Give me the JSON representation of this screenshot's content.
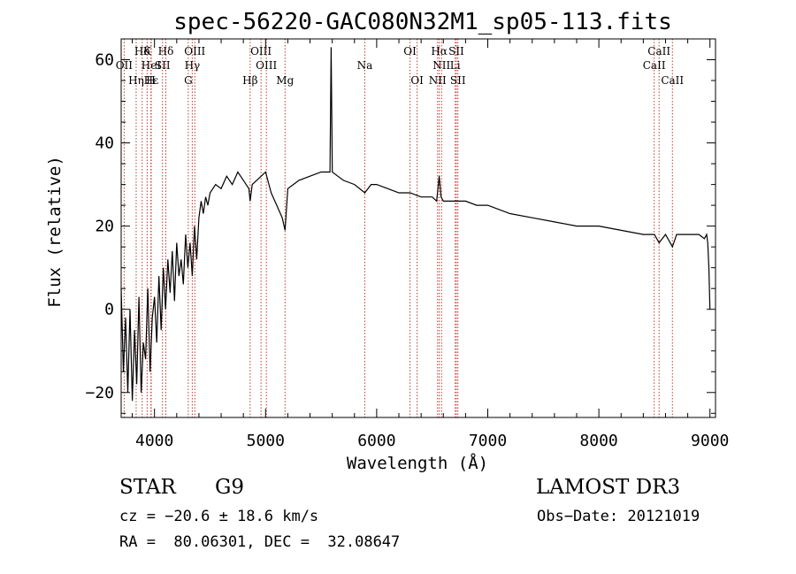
{
  "chart_data": {
    "type": "line",
    "title": "spec-56220-GAC080N32M1_sp05-113.fits",
    "xlabel": "Wavelength (Å)",
    "ylabel": "Flux (relative)",
    "xlim": [
      3700,
      9050
    ],
    "ylim": [
      -26,
      65
    ],
    "xticks": [
      4000,
      5000,
      6000,
      7000,
      8000,
      9000
    ],
    "yticks": [
      -20,
      0,
      20,
      40,
      60
    ],
    "series": [
      {
        "name": "flux",
        "x": [
          3700,
          3720,
          3740,
          3760,
          3780,
          3800,
          3820,
          3840,
          3860,
          3880,
          3900,
          3920,
          3940,
          3960,
          3980,
          4000,
          4020,
          4040,
          4060,
          4080,
          4100,
          4120,
          4140,
          4160,
          4180,
          4200,
          4220,
          4240,
          4260,
          4280,
          4300,
          4320,
          4340,
          4360,
          4380,
          4400,
          4420,
          4440,
          4460,
          4480,
          4500,
          4550,
          4600,
          4650,
          4700,
          4750,
          4800,
          4850,
          4861,
          4880,
          4920,
          4960,
          5000,
          5050,
          5100,
          5150,
          5175,
          5200,
          5250,
          5300,
          5400,
          5500,
          5580,
          5590,
          5600,
          5650,
          5700,
          5800,
          5893,
          5950,
          6000,
          6100,
          6200,
          6300,
          6400,
          6500,
          6540,
          6563,
          6580,
          6600,
          6700,
          6800,
          6900,
          7000,
          7200,
          7400,
          7600,
          7800,
          8000,
          8200,
          8400,
          8500,
          8542,
          8600,
          8662,
          8700,
          8800,
          8900,
          8950,
          8970,
          8980,
          8990,
          9000
        ],
        "y": [
          5,
          -15,
          -2,
          -20,
          0,
          -22,
          -5,
          -18,
          3,
          -20,
          -8,
          -12,
          5,
          -15,
          -2,
          3,
          -8,
          8,
          -5,
          10,
          0,
          12,
          4,
          14,
          2,
          16,
          8,
          12,
          6,
          18,
          10,
          16,
          8,
          20,
          12,
          22,
          26,
          23,
          27,
          25,
          28,
          30,
          29,
          32,
          30,
          33,
          31,
          29,
          26,
          30,
          31,
          32,
          33,
          28,
          25,
          22,
          19,
          29,
          30,
          31,
          32,
          33,
          33,
          63,
          33,
          32,
          31,
          30,
          28,
          30,
          30,
          29,
          28,
          28,
          27,
          27,
          26,
          32,
          27,
          26,
          26,
          26,
          25,
          25,
          23,
          22,
          21,
          20,
          20,
          19,
          18,
          18,
          16,
          18,
          15,
          18,
          18,
          18,
          17,
          18,
          16,
          10,
          0
        ]
      }
    ],
    "lines": [
      {
        "label": "Hδ",
        "x": 3889,
        "row": 1
      },
      {
        "label": "OII",
        "x": 3727,
        "row": 2
      },
      {
        "label": "K",
        "x": 3934,
        "row": 1
      },
      {
        "label": "HeI",
        "x": 3970,
        "row": 2
      },
      {
        "label": "Hη",
        "x": 3835,
        "row": 3
      },
      {
        "label": "Hε",
        "x": 3970,
        "row": 3
      },
      {
        "label": "H",
        "x": 3968,
        "row": 3
      },
      {
        "label": "SII",
        "x": 4072,
        "row": 2
      },
      {
        "label": "Hδ",
        "x": 4102,
        "row": 1
      },
      {
        "label": "OIII",
        "x": 4363,
        "row": 1
      },
      {
        "label": "Hγ",
        "x": 4340,
        "row": 2
      },
      {
        "label": "G",
        "x": 4304,
        "row": 3
      },
      {
        "label": "OIII",
        "x": 4959,
        "row": 1
      },
      {
        "label": "OIII",
        "x": 5007,
        "row": 2
      },
      {
        "label": "Hβ",
        "x": 4861,
        "row": 3
      },
      {
        "label": "Mg",
        "x": 5175,
        "row": 3
      },
      {
        "label": "Na",
        "x": 5893,
        "row": 2
      },
      {
        "label": "OI",
        "x": 6300,
        "row": 1
      },
      {
        "label": "OI",
        "x": 6364,
        "row": 3
      },
      {
        "label": "Hα",
        "x": 6563,
        "row": 1
      },
      {
        "label": "SII",
        "x": 6717,
        "row": 1
      },
      {
        "label": "NII",
        "x": 6584,
        "row": 2
      },
      {
        "label": "Li",
        "x": 6707,
        "row": 2
      },
      {
        "label": "NII",
        "x": 6548,
        "row": 3
      },
      {
        "label": "SII",
        "x": 6731,
        "row": 3
      },
      {
        "label": "CaII",
        "x": 8542,
        "row": 1
      },
      {
        "label": "CaII",
        "x": 8498,
        "row": 2
      },
      {
        "label": "CaII",
        "x": 8662,
        "row": 3
      }
    ]
  },
  "footer": {
    "object_type": "STAR",
    "subclass": "G9",
    "survey": "LAMOST DR3",
    "cz": "cz = −20.6 ± 18.6 km/s",
    "obs_date": "Obs−Date: 20121019",
    "coords": "RA =  80.06301, DEC =  32.08647"
  },
  "colors": {
    "line_marker": "#c0392b",
    "spectrum": "#000000",
    "axis": "#000000"
  }
}
